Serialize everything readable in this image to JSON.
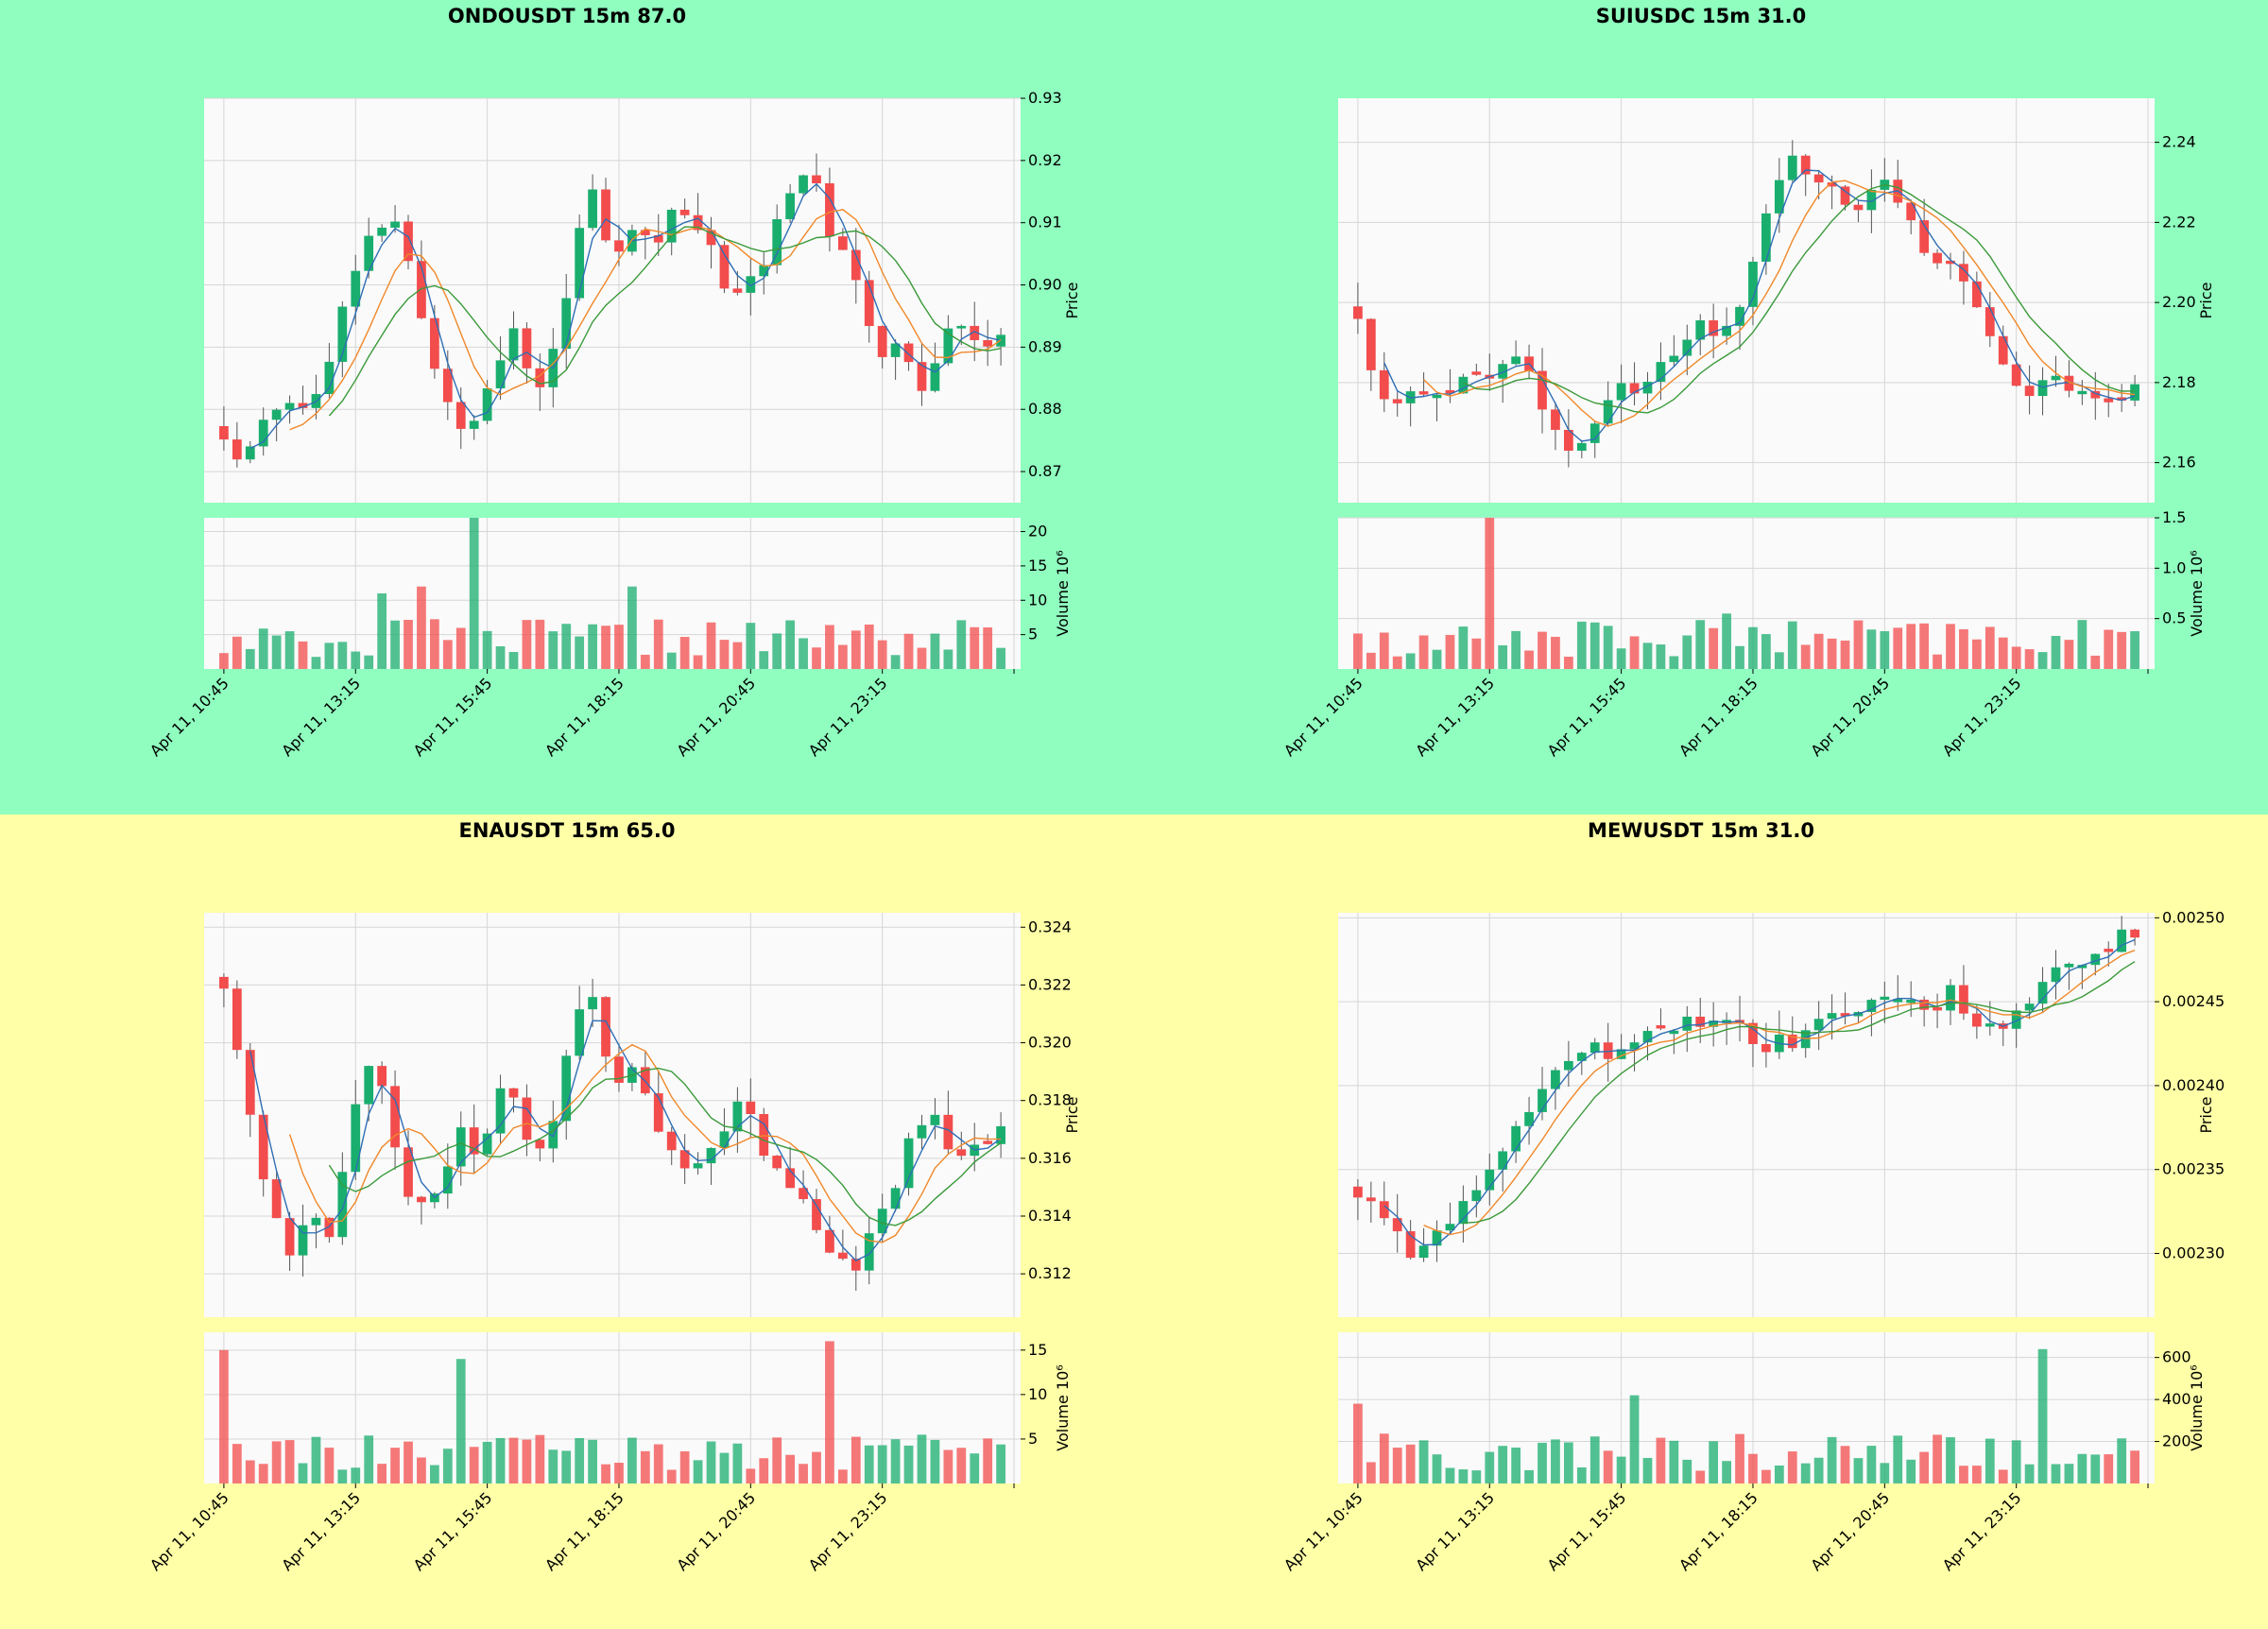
{
  "chart_data": [
    {
      "type": "candlestick",
      "title": "ONDOUSDT 15m 87.0",
      "background": "#8ffebf",
      "up_color": "#1aae6e",
      "down_color": "#f34c4c",
      "ma_colors": [
        "#2f6eb5",
        "#f0882a",
        "#3a9a3a"
      ],
      "ylabel": "Price",
      "volume_label": "Volume  10⁶",
      "price_ylim": [
        0.865,
        0.93
      ],
      "price_ticks": [
        "0.87",
        "0.88",
        "0.89",
        "0.90",
        "0.91",
        "0.92",
        "0.93"
      ],
      "volume_ylim": [
        0,
        22
      ],
      "volume_ticks": [
        "5",
        "10",
        "15",
        "20"
      ],
      "x_ticks": [
        "Apr 11, 10:45",
        "Apr 11, 13:15",
        "Apr 11, 15:45",
        "Apr 11, 18:15",
        "Apr 11, 20:45",
        "Apr 11, 23:15"
      ],
      "anchors": [
        0.876,
        0.871,
        0.878,
        0.882,
        0.88,
        0.885,
        0.895,
        0.905,
        0.91,
        0.912,
        0.898,
        0.885,
        0.876,
        0.88,
        0.888,
        0.893,
        0.882,
        0.89,
        0.905,
        0.915,
        0.905,
        0.91,
        0.906,
        0.912,
        0.909,
        0.906,
        0.898,
        0.9,
        0.905,
        0.915,
        0.92,
        0.91,
        0.905,
        0.895,
        0.888,
        0.89,
        0.884,
        0.892,
        0.895,
        0.89,
        0.893
      ],
      "volume_bumps": [
        [
          13,
          22
        ],
        [
          8,
          11
        ],
        [
          21,
          12
        ],
        [
          10,
          12
        ]
      ]
    },
    {
      "type": "candlestick",
      "title": "SUIUSDC 15m 31.0",
      "background": "#8ffebf",
      "up_color": "#1aae6e",
      "down_color": "#f34c4c",
      "ma_colors": [
        "#2f6eb5",
        "#f0882a",
        "#3a9a3a"
      ],
      "ylabel": "Price",
      "volume_label": "Volume  10⁶",
      "price_ylim": [
        2.15,
        2.251
      ],
      "price_ticks": [
        "2.16",
        "2.18",
        "2.20",
        "2.22",
        "2.24"
      ],
      "volume_ylim": [
        0,
        1.5
      ],
      "volume_ticks": [
        "0.5",
        "1.0",
        "1.5"
      ],
      "x_ticks": [
        "Apr 11, 10:45",
        "Apr 11, 13:15",
        "Apr 11, 15:45",
        "Apr 11, 18:15",
        "Apr 11, 20:45",
        "Apr 11, 23:15"
      ],
      "anchors": [
        2.197,
        2.178,
        2.175,
        2.177,
        2.176,
        2.181,
        2.178,
        2.186,
        2.182,
        2.17,
        2.16,
        2.172,
        2.178,
        2.18,
        2.183,
        2.187,
        2.195,
        2.193,
        2.205,
        2.222,
        2.24,
        2.232,
        2.228,
        2.224,
        2.23,
        2.226,
        2.214,
        2.212,
        2.205,
        2.198,
        2.184,
        2.178,
        2.181,
        2.179,
        2.178,
        2.174,
        2.182
      ],
      "volume_bumps": [
        [
          6,
          1.5
        ],
        [
          17,
          0.55
        ]
      ]
    },
    {
      "type": "candlestick",
      "title": "ENAUSDT 15m 65.0",
      "background": "#feffa6",
      "up_color": "#1aae6e",
      "down_color": "#f34c4c",
      "ma_colors": [
        "#2f6eb5",
        "#f0882a",
        "#3a9a3a"
      ],
      "ylabel": "Price",
      "volume_label": "Volume  10⁶",
      "price_ylim": [
        0.3105,
        0.3245
      ],
      "price_ticks": [
        "0.312",
        "0.314",
        "0.316",
        "0.318",
        "0.320",
        "0.322",
        "0.324"
      ],
      "volume_ylim": [
        0,
        17
      ],
      "volume_ticks": [
        "5",
        "10",
        "15"
      ],
      "x_ticks": [
        "Apr 11, 10:45",
        "Apr 11, 13:15",
        "Apr 11, 15:45",
        "Apr 11, 18:15",
        "Apr 11, 20:45",
        "Apr 11, 23:15"
      ],
      "anchors": [
        0.322,
        0.318,
        0.315,
        0.3125,
        0.314,
        0.313,
        0.318,
        0.32,
        0.316,
        0.314,
        0.315,
        0.317,
        0.316,
        0.319,
        0.317,
        0.316,
        0.32,
        0.322,
        0.318,
        0.319,
        0.317,
        0.316,
        0.3155,
        0.317,
        0.318,
        0.316,
        0.315,
        0.3145,
        0.313,
        0.312,
        0.3135,
        0.315,
        0.317,
        0.3175,
        0.316,
        0.3165,
        0.3168
      ],
      "volume_bumps": [
        [
          0,
          15
        ],
        [
          11,
          14
        ],
        [
          28,
          16
        ]
      ]
    },
    {
      "type": "candlestick",
      "title": "MEWUSDT 15m 31.0",
      "background": "#feffa6",
      "up_color": "#1aae6e",
      "down_color": "#f34c4c",
      "ma_colors": [
        "#2f6eb5",
        "#f0882a",
        "#3a9a3a"
      ],
      "ylabel": "Price",
      "volume_label": "Volume  10⁶",
      "price_ylim": [
        0.002262,
        0.002503
      ],
      "price_ticks": [
        "0.00230",
        "0.00235",
        "0.00240",
        "0.00245",
        "0.00250"
      ],
      "volume_ylim": [
        0,
        720
      ],
      "volume_ticks": [
        "200",
        "400",
        "600"
      ],
      "x_ticks": [
        "Apr 11, 10:45",
        "Apr 11, 13:15",
        "Apr 11, 15:45",
        "Apr 11, 18:15",
        "Apr 11, 20:45",
        "Apr 11, 23:15"
      ],
      "anchors": [
        0.002335,
        0.002328,
        0.0023,
        0.002303,
        0.002315,
        0.00234,
        0.002355,
        0.002375,
        0.002395,
        0.00241,
        0.002425,
        0.00242,
        0.00243,
        0.002428,
        0.002438,
        0.002432,
        0.00244,
        0.00243,
        0.002425,
        0.002428,
        0.002438,
        0.002448,
        0.002445,
        0.002455,
        0.00245,
        0.002448,
        0.002455,
        0.00244,
        0.002435,
        0.002445,
        0.002465,
        0.00247,
        0.002468,
        0.002485,
        0.00249
      ],
      "volume_bumps": [
        [
          0,
          380
        ],
        [
          12,
          420
        ],
        [
          30,
          640
        ]
      ]
    }
  ]
}
